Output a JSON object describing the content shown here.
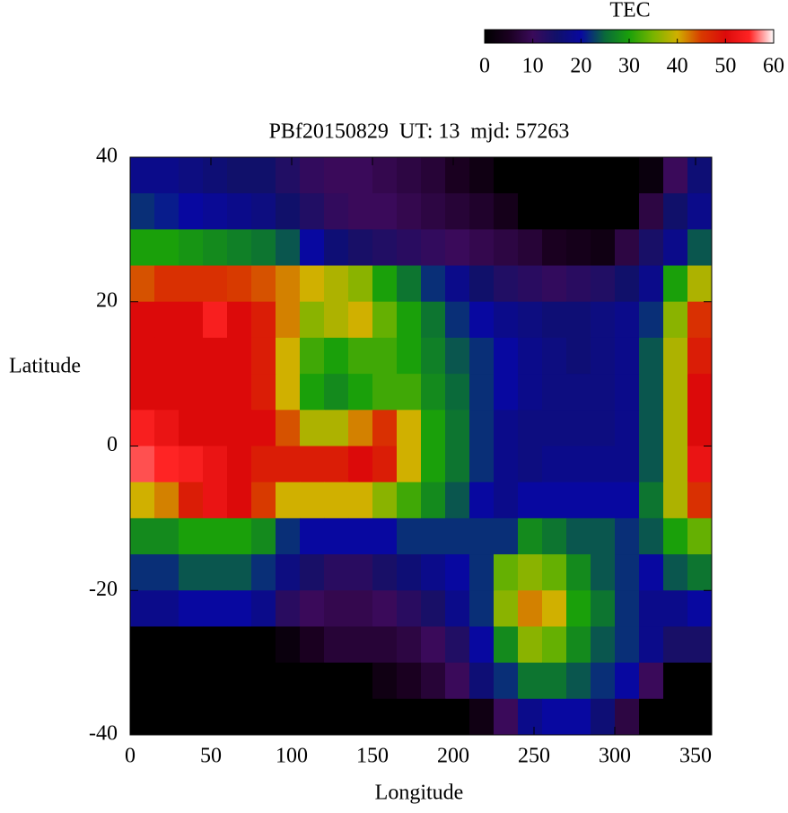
{
  "chart_data": {
    "type": "heatmap",
    "title": "PBf20150829  UT: 13  mjd: 57263",
    "x_label": "Longitude",
    "y_label": "Latitude",
    "colorbar_label": "TEC",
    "x": [
      7.5,
      22.5,
      37.5,
      52.5,
      67.5,
      82.5,
      97.5,
      112.5,
      127.5,
      142.5,
      157.5,
      172.5,
      187.5,
      202.5,
      217.5,
      232.5,
      247.5,
      262.5,
      277.5,
      292.5,
      307.5,
      322.5,
      337.5,
      352.5
    ],
    "y": [
      37.5,
      32.5,
      27.5,
      22.5,
      17.5,
      12.5,
      7.5,
      2.5,
      -2.5,
      -7.5,
      -12.5,
      -17.5,
      -22.5,
      -27.5,
      -32.5,
      -37.5
    ],
    "z": [
      [
        18,
        18,
        17,
        16,
        15,
        15,
        13,
        11,
        10,
        10,
        9,
        8,
        7,
        5,
        3,
        0,
        0,
        0,
        0,
        0,
        0,
        2,
        10,
        16
      ],
      [
        22,
        21,
        20,
        19,
        18,
        17,
        15,
        13,
        11,
        10,
        10,
        9,
        8,
        7,
        6,
        4,
        0,
        0,
        0,
        0,
        0,
        8,
        15,
        18
      ],
      [
        30,
        30,
        29,
        28,
        27,
        26,
        24,
        20,
        16,
        14,
        13,
        12,
        11,
        10,
        9,
        8,
        7,
        5,
        4,
        3,
        8,
        14,
        18,
        24
      ],
      [
        44,
        46,
        46,
        46,
        45,
        44,
        42,
        40,
        38,
        36,
        30,
        26,
        22,
        18,
        15,
        13,
        12,
        11,
        12,
        13,
        15,
        18,
        30,
        38
      ],
      [
        50,
        50,
        50,
        54,
        50,
        48,
        42,
        36,
        38,
        40,
        34,
        30,
        26,
        22,
        20,
        18,
        17,
        16,
        16,
        17,
        18,
        22,
        36,
        46
      ],
      [
        50,
        50,
        50,
        50,
        50,
        48,
        40,
        32,
        30,
        32,
        32,
        30,
        27,
        24,
        22,
        20,
        18,
        17,
        16,
        17,
        18,
        24,
        38,
        48
      ],
      [
        50,
        50,
        50,
        50,
        50,
        48,
        40,
        30,
        28,
        30,
        32,
        32,
        28,
        25,
        22,
        20,
        18,
        17,
        17,
        17,
        18,
        24,
        38,
        50
      ],
      [
        54,
        52,
        50,
        50,
        50,
        50,
        44,
        38,
        38,
        42,
        46,
        40,
        30,
        26,
        22,
        18,
        17,
        17,
        17,
        17,
        18,
        24,
        38,
        50
      ],
      [
        56,
        55,
        54,
        52,
        50,
        48,
        48,
        48,
        48,
        50,
        48,
        40,
        30,
        26,
        22,
        18,
        17,
        18,
        18,
        18,
        18,
        24,
        38,
        52
      ],
      [
        40,
        42,
        48,
        52,
        50,
        45,
        40,
        40,
        40,
        40,
        36,
        32,
        28,
        24,
        20,
        18,
        20,
        20,
        20,
        20,
        20,
        26,
        38,
        46
      ],
      [
        28,
        28,
        30,
        30,
        30,
        28,
        22,
        20,
        20,
        20,
        20,
        22,
        22,
        22,
        22,
        22,
        28,
        26,
        24,
        24,
        22,
        24,
        30,
        34
      ],
      [
        22,
        22,
        24,
        24,
        24,
        22,
        17,
        14,
        12,
        12,
        14,
        16,
        18,
        20,
        22,
        34,
        36,
        34,
        28,
        24,
        22,
        20,
        24,
        26
      ],
      [
        18,
        18,
        20,
        20,
        20,
        18,
        12,
        10,
        9,
        9,
        10,
        12,
        14,
        18,
        22,
        36,
        42,
        40,
        30,
        26,
        22,
        18,
        18,
        20
      ],
      [
        0,
        0,
        0,
        0,
        0,
        0,
        2,
        5,
        7,
        7,
        7,
        8,
        10,
        13,
        20,
        28,
        36,
        34,
        28,
        24,
        22,
        18,
        14,
        14
      ],
      [
        0,
        0,
        0,
        0,
        0,
        0,
        0,
        0,
        0,
        0,
        3,
        5,
        7,
        10,
        16,
        22,
        26,
        26,
        24,
        22,
        20,
        10,
        0,
        0
      ],
      [
        0,
        0,
        0,
        0,
        0,
        0,
        0,
        0,
        0,
        0,
        0,
        0,
        0,
        0,
        3,
        10,
        18,
        20,
        20,
        16,
        8,
        0,
        0,
        0
      ]
    ],
    "xlim": [
      0,
      360
    ],
    "xticks": [
      0,
      50,
      100,
      150,
      200,
      250,
      300,
      350
    ],
    "ylim": [
      -40,
      40
    ],
    "yticks": [
      -40,
      -20,
      0,
      20,
      40
    ],
    "zlim": [
      0,
      60
    ],
    "zticks": [
      0,
      10,
      20,
      30,
      40,
      50,
      60
    ],
    "colors": [
      "#000000",
      "#1a0020",
      "#3a0a5a",
      "#10106a",
      "#0808a0",
      "#0a6a3a",
      "#1aa00a",
      "#78b400",
      "#d0b000",
      "#d83a00",
      "#dc0a0a",
      "#ff2424",
      "#ffffff"
    ]
  }
}
